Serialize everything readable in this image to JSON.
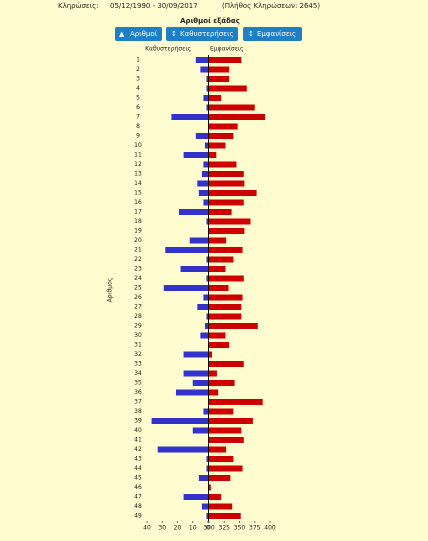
{
  "header": {
    "label": "Κληρώσεις:",
    "range": "05/12/1990 - 30/09/2017",
    "count": "(Πλήθος Κληρώσεων: 2645)"
  },
  "buttons": [
    "Αριθμοί",
    "Καθυστερήσεις",
    "Εμφανίσεις"
  ],
  "chart_data": {
    "type": "diverging-bar",
    "title": "Αριθμοί εξάδας",
    "y_label": "Αριθμός",
    "categories": [
      "1",
      "2",
      "3",
      "4",
      "5",
      "6",
      "7",
      "8",
      "9",
      "10",
      "11",
      "12",
      "13",
      "14",
      "15",
      "16",
      "17",
      "18",
      "19",
      "20",
      "21",
      "22",
      "23",
      "24",
      "25",
      "26",
      "27",
      "28",
      "29",
      "30",
      "31",
      "32",
      "33",
      "34",
      "35",
      "36",
      "37",
      "38",
      "39",
      "40",
      "41",
      "42",
      "43",
      "44",
      "45",
      "46",
      "47",
      "48",
      "49"
    ],
    "series": [
      {
        "name": "Καθυστερήσεις",
        "color": "#3333cc",
        "axis": "x",
        "values": [
          8,
          5,
          1,
          1,
          3,
          1,
          24,
          0,
          8,
          2,
          16,
          3,
          4,
          7,
          6,
          3,
          19,
          1,
          0,
          12,
          28,
          1,
          18,
          1,
          29,
          3,
          7,
          1,
          2,
          5,
          0,
          16,
          0,
          16,
          10,
          21,
          0,
          3,
          37,
          10,
          0,
          33,
          1,
          1,
          6,
          0,
          16,
          4,
          1
        ]
      },
      {
        "name": "Εμφανίσεις",
        "color": "#cc0000",
        "axis": "x2",
        "values": [
          353,
          333,
          333,
          362,
          320,
          375,
          392,
          347,
          340,
          327,
          312,
          345,
          357,
          358,
          378,
          357,
          337,
          368,
          358,
          328,
          355,
          340,
          327,
          357,
          332,
          355,
          353,
          353,
          380,
          327,
          333,
          305,
          357,
          313,
          342,
          315,
          388,
          340,
          372,
          353,
          357,
          328,
          340,
          355,
          335,
          303,
          320,
          338,
          352
        ]
      }
    ],
    "xlim": [
      40,
      0
    ],
    "xticks": [
      40,
      30,
      20,
      10,
      0
    ],
    "x2lim": [
      300,
      400
    ],
    "x2ticks": [
      300,
      325,
      350,
      375,
      400
    ]
  }
}
